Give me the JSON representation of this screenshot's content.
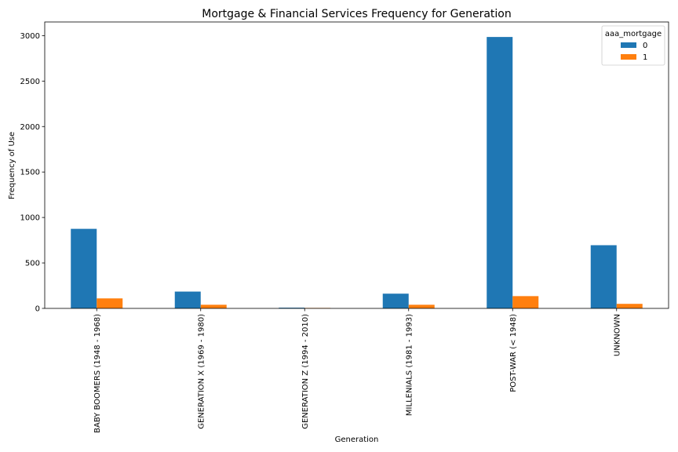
{
  "chart_data": {
    "type": "bar",
    "title": "Mortgage & Financial Services Frequency for Generation",
    "xlabel": "Generation",
    "ylabel": "Frequency of Use",
    "categories": [
      "BABY BOOMERS (1948 - 1968)",
      "GENERATION X (1969 - 1980)",
      "GENERATION Z (1994 - 2010)",
      "MILLENIALS (1981 - 1993)",
      "POST-WAR (< 1948)",
      "UNKNOWN"
    ],
    "series": [
      {
        "name": "0",
        "color": "#1f77b4",
        "values": [
          875,
          185,
          8,
          162,
          2985,
          695
        ]
      },
      {
        "name": "1",
        "color": "#ff7f0e",
        "values": [
          110,
          40,
          5,
          40,
          135,
          50
        ]
      }
    ],
    "ylim": [
      0,
      3150
    ],
    "yticks": [
      0,
      500,
      1000,
      1500,
      2000,
      2500,
      3000
    ],
    "legend": {
      "title": "aaa_mortgage",
      "placement": "top-right"
    },
    "grid": false
  }
}
